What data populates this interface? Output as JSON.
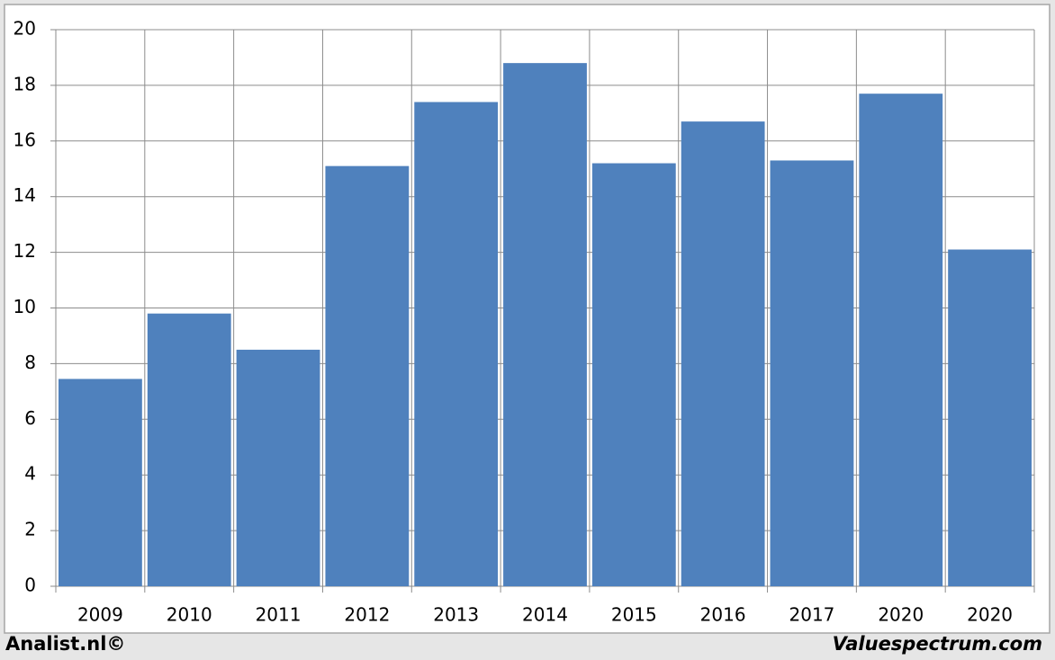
{
  "chart_data": {
    "type": "bar",
    "categories": [
      "2009",
      "2010",
      "2011",
      "2012",
      "2013",
      "2014",
      "2015",
      "2016",
      "2017",
      "2020",
      "2020"
    ],
    "values": [
      7.45,
      9.8,
      8.5,
      15.1,
      17.4,
      18.8,
      15.2,
      16.7,
      15.3,
      17.7,
      12.1
    ],
    "color": "#4f81bd",
    "ylim": [
      0,
      20
    ],
    "yticks": [
      0,
      2,
      4,
      6,
      8,
      10,
      12,
      14,
      16,
      18,
      20
    ],
    "grid": true,
    "source": "Analist.nl©",
    "watermark": "Valuespectrum.com"
  }
}
